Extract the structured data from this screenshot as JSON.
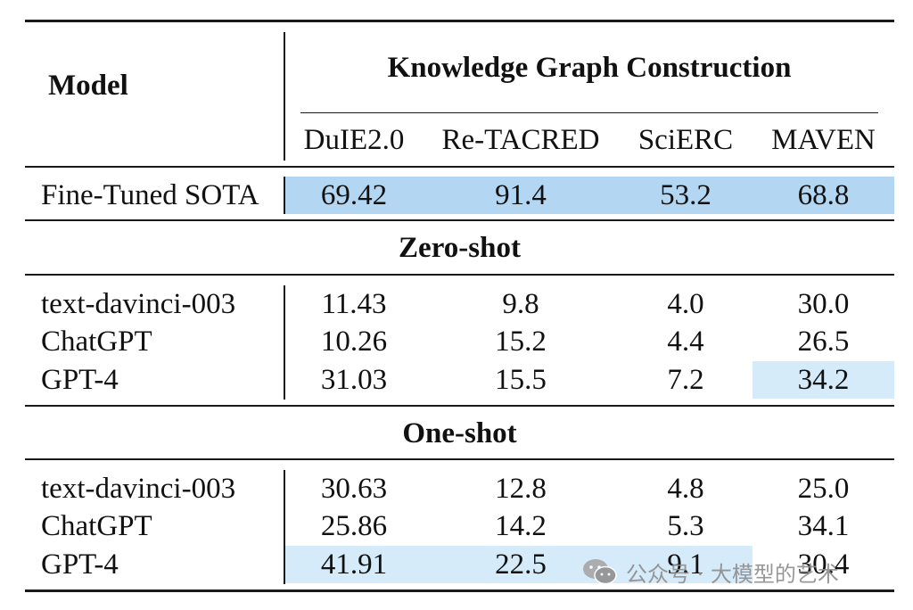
{
  "table": {
    "header": {
      "model_label": "Model",
      "group_label": "Knowledge Graph Construction",
      "columns": [
        "DuIE2.0",
        "Re-TACRED",
        "SciERC",
        "MAVEN"
      ]
    },
    "baseline": {
      "model": "Fine-Tuned SOTA",
      "values": [
        "69.42",
        "91.4",
        "53.2",
        "68.8"
      ]
    },
    "sections": [
      {
        "title": "Zero-shot",
        "rows": [
          {
            "model": "text-davinci-003",
            "values": [
              "11.43",
              "9.8",
              "4.0",
              "30.0"
            ]
          },
          {
            "model": "ChatGPT",
            "values": [
              "10.26",
              "15.2",
              "4.4",
              "26.5"
            ]
          },
          {
            "model": "GPT-4",
            "values": [
              "31.03",
              "15.5",
              "7.2",
              "34.2"
            ]
          }
        ]
      },
      {
        "title": "One-shot",
        "rows": [
          {
            "model": "text-davinci-003",
            "values": [
              "30.63",
              "12.8",
              "4.8",
              "25.0"
            ]
          },
          {
            "model": "ChatGPT",
            "values": [
              "25.86",
              "14.2",
              "5.3",
              "34.1"
            ]
          },
          {
            "model": "GPT-4",
            "values": [
              "41.91",
              "22.5",
              "9.1",
              "30.4"
            ]
          }
        ]
      }
    ],
    "highlight_colors": {
      "strong": "#b3d6f3",
      "light": "#d6ebfa"
    }
  },
  "watermark": {
    "icon": "wechat-icon",
    "text": "公众号 · 大模型的艺术"
  }
}
